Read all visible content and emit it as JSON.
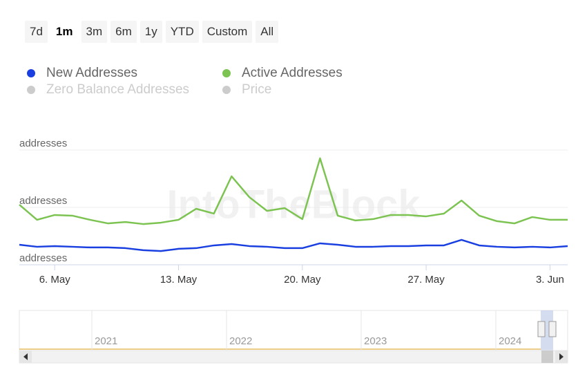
{
  "range_selector": {
    "buttons": [
      "7d",
      "1m",
      "3m",
      "6m",
      "1y",
      "YTD",
      "Custom",
      "All"
    ],
    "selected": 1
  },
  "chart_data": {
    "type": "line",
    "watermark": "IntoTheBlock",
    "categories": [
      null,
      null,
      "6. May",
      null,
      null,
      null,
      null,
      null,
      null,
      "13. May",
      null,
      null,
      null,
      null,
      null,
      null,
      "20. May",
      null,
      null,
      null,
      null,
      null,
      null,
      "27. May",
      null,
      null,
      null,
      null,
      null,
      null,
      "3. Jun",
      null
    ],
    "series": [
      {
        "name": "New Addresses",
        "color": "#1a3fe0",
        "values": [
          17.5,
          15.7,
          16.3,
          15.7,
          15.1,
          15.1,
          14.5,
          12.7,
          12.0,
          13.9,
          14.5,
          16.9,
          18.1,
          16.3,
          15.7,
          14.5,
          14.5,
          18.7,
          17.5,
          15.7,
          15.7,
          16.3,
          16.3,
          16.9,
          16.9,
          21.7,
          16.9,
          15.7,
          15.1,
          15.7,
          15.1,
          16.3
        ]
      },
      {
        "name": "Active Addresses",
        "color": "#7cc352",
        "values": [
          52.4,
          39.2,
          43.4,
          42.8,
          39.2,
          36.1,
          37.3,
          35.5,
          36.7,
          39.2,
          48.8,
          44.6,
          77.1,
          59.0,
          47.0,
          49.4,
          39.8,
          92.8,
          42.8,
          38.6,
          39.8,
          43.4,
          43.4,
          42.2,
          44.6,
          56.0,
          42.8,
          38.0,
          36.1,
          41.6,
          39.2,
          39.2
        ]
      }
    ],
    "hidden_series": [
      {
        "name": "Zero Balance Addresses",
        "color": "#cccccc"
      },
      {
        "name": "Price",
        "color": "#cccccc"
      }
    ],
    "ylim": [
      0,
      100
    ],
    "yticks": [
      {
        "value": 0,
        "label": "addresses"
      },
      {
        "value": 50,
        "label": "addresses"
      },
      {
        "value": 100,
        "label": "addresses"
      }
    ],
    "grid": true,
    "navigator": {
      "labels": [
        "2021",
        "2022",
        "2023",
        "2024"
      ]
    }
  }
}
